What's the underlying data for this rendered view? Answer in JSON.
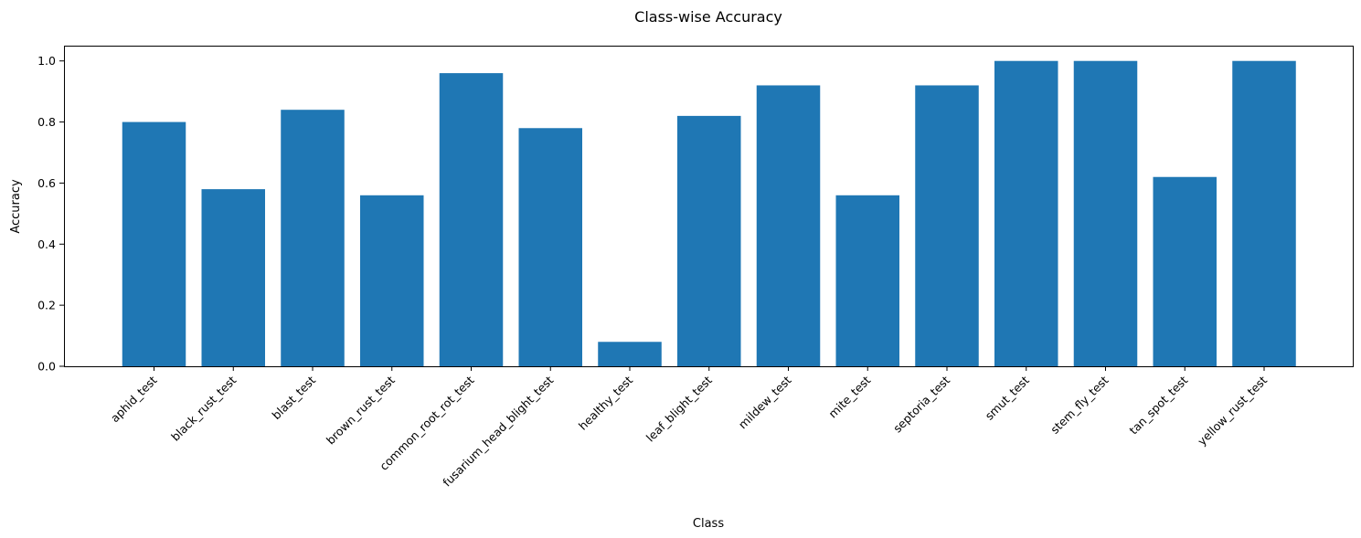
{
  "chart_data": {
    "type": "bar",
    "title": "Class-wise Accuracy",
    "xlabel": "Class",
    "ylabel": "Accuracy",
    "ylim": [
      0,
      1.05
    ],
    "yticks": [
      0.0,
      0.2,
      0.4,
      0.6,
      0.8,
      1.0
    ],
    "ytick_labels": [
      "0.0",
      "0.2",
      "0.4",
      "0.6",
      "0.8",
      "1.0"
    ],
    "grid": false,
    "bar_color": "#1f77b4",
    "categories": [
      "aphid_test",
      "black_rust_test",
      "blast_test",
      "brown_rust_test",
      "common_root_rot_test",
      "fusarium_head_blight_test",
      "healthy_test",
      "leaf_blight_test",
      "mildew_test",
      "mite_test",
      "septoria_test",
      "smut_test",
      "stem_fly_test",
      "tan_spot_test",
      "yellow_rust_test"
    ],
    "values": [
      0.8,
      0.58,
      0.84,
      0.56,
      0.96,
      0.78,
      0.08,
      0.82,
      0.92,
      0.56,
      0.92,
      1.0,
      1.0,
      0.62,
      1.0
    ]
  }
}
